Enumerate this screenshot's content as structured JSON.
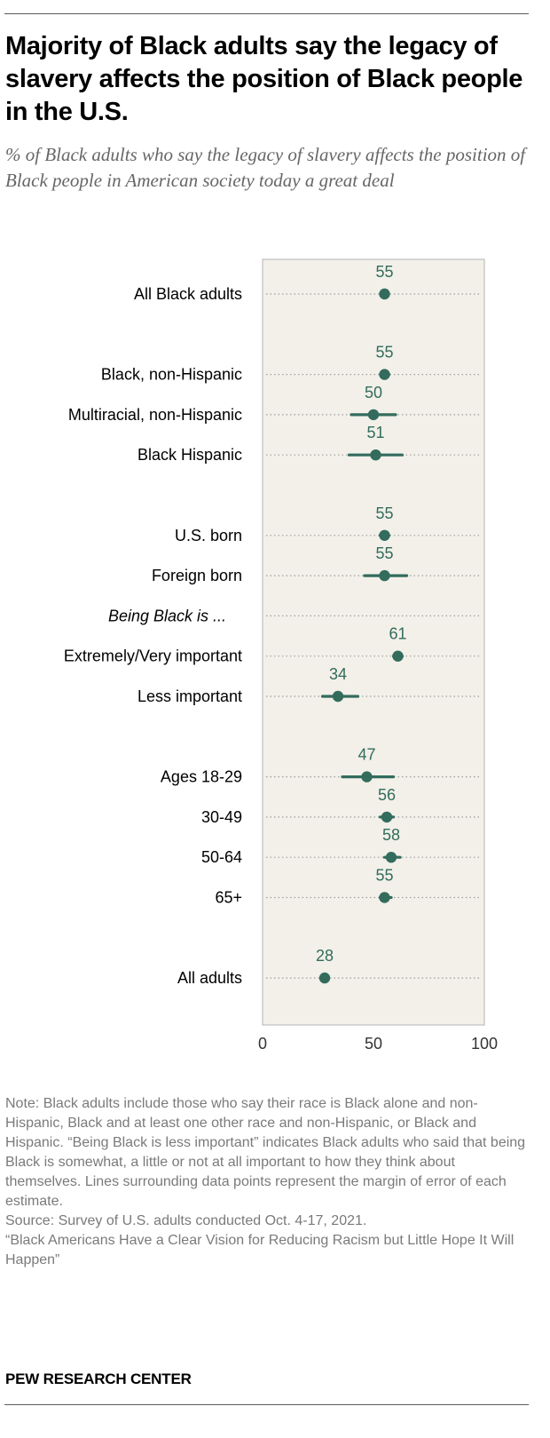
{
  "title": "Majority of Black adults say the legacy of slavery affects the position of Black people in the U.S.",
  "subtitle": "% of Black adults who say the legacy of slavery affects the position of Black people in American society today a great deal",
  "colors": {
    "accent": "#336c5d",
    "plot_background": "#f2f0e9",
    "plot_border": "#b3b3b3",
    "dotted_line": "#9e9e9e"
  },
  "chart_data": {
    "type": "scatter",
    "title": "Majority of Black adults say the legacy of slavery affects the position of Black people in the U.S.",
    "subtitle": "% of Black adults who say the legacy of slavery affects the position of Black people in American society today a great deal",
    "xlim": [
      0,
      100
    ],
    "x_ticks": [
      "0",
      "50",
      "100"
    ],
    "grid": false,
    "legend": "none",
    "error_bars": true,
    "rows": [
      {
        "label": "All Black adults",
        "value": 55,
        "low": 54,
        "high": 56
      },
      {
        "label": "",
        "spacer": true
      },
      {
        "label": "Black, non-Hispanic",
        "value": 55,
        "low": 54,
        "high": 57
      },
      {
        "label": "Multiracial, non-Hispanic",
        "value": 50,
        "low": 40,
        "high": 60
      },
      {
        "label": "Black Hispanic",
        "value": 51,
        "low": 39,
        "high": 63
      },
      {
        "label": "",
        "spacer": true
      },
      {
        "label": "U.S. born",
        "value": 55,
        "low": 53,
        "high": 57
      },
      {
        "label": "Foreign born",
        "value": 55,
        "low": 46,
        "high": 65
      },
      {
        "label": "Being Black is ...",
        "header": true
      },
      {
        "label": "Extremely/Very important",
        "value": 61,
        "low": 59,
        "high": 63
      },
      {
        "label": "Less important",
        "value": 34,
        "low": 27,
        "high": 43
      },
      {
        "label": "",
        "spacer": true
      },
      {
        "label": "Ages 18-29",
        "value": 47,
        "low": 36,
        "high": 59
      },
      {
        "label": "30-49",
        "value": 56,
        "low": 53,
        "high": 59
      },
      {
        "label": "50-64",
        "value": 58,
        "low": 55,
        "high": 62
      },
      {
        "label": "65+",
        "value": 55,
        "low": 53,
        "high": 58
      },
      {
        "label": "",
        "spacer": true
      },
      {
        "label": "All adults",
        "value": 28,
        "low": 27,
        "high": 29
      }
    ]
  },
  "notes": {
    "note": "Note: Black adults include those who say their race is Black alone and non-Hispanic, Black and at least one other race and non-Hispanic, or Black and Hispanic. “Being Black is less important” indicates Black adults who said that being Black is somewhat, a little or not at all important to how they think about themselves. Lines surrounding data points represent the margin of error of each estimate.",
    "source": "Source: Survey of U.S. adults conducted Oct. 4-17, 2021.",
    "report": "“Black Americans Have a Clear Vision for Reducing Racism but Little Hope It Will Happen”"
  },
  "brand": "PEW RESEARCH CENTER"
}
